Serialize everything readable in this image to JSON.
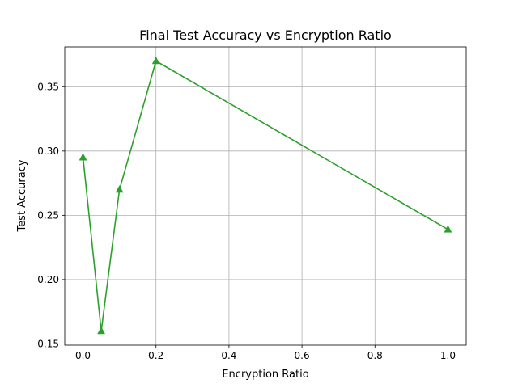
{
  "chart_data": {
    "type": "line",
    "title": "Final Test Accuracy vs Encryption Ratio",
    "xlabel": "Encryption Ratio",
    "ylabel": "Test Accuracy",
    "x": [
      0.0,
      0.05,
      0.1,
      0.2,
      1.0
    ],
    "series": [
      {
        "values": [
          0.295,
          0.16,
          0.27,
          0.37,
          0.239
        ],
        "color": "#2ca02c",
        "marker": "triangle-up"
      }
    ],
    "xlim": [
      -0.05,
      1.05
    ],
    "ylim": [
      0.149,
      0.381
    ],
    "xticks": [
      0.0,
      0.2,
      0.4,
      0.6,
      0.8,
      1.0
    ],
    "xtick_labels": [
      "0.0",
      "0.2",
      "0.4",
      "0.6",
      "0.8",
      "1.0"
    ],
    "yticks": [
      0.15,
      0.2,
      0.25,
      0.3,
      0.35
    ],
    "ytick_labels": [
      "0.15",
      "0.20",
      "0.25",
      "0.30",
      "0.35"
    ],
    "grid": true
  }
}
